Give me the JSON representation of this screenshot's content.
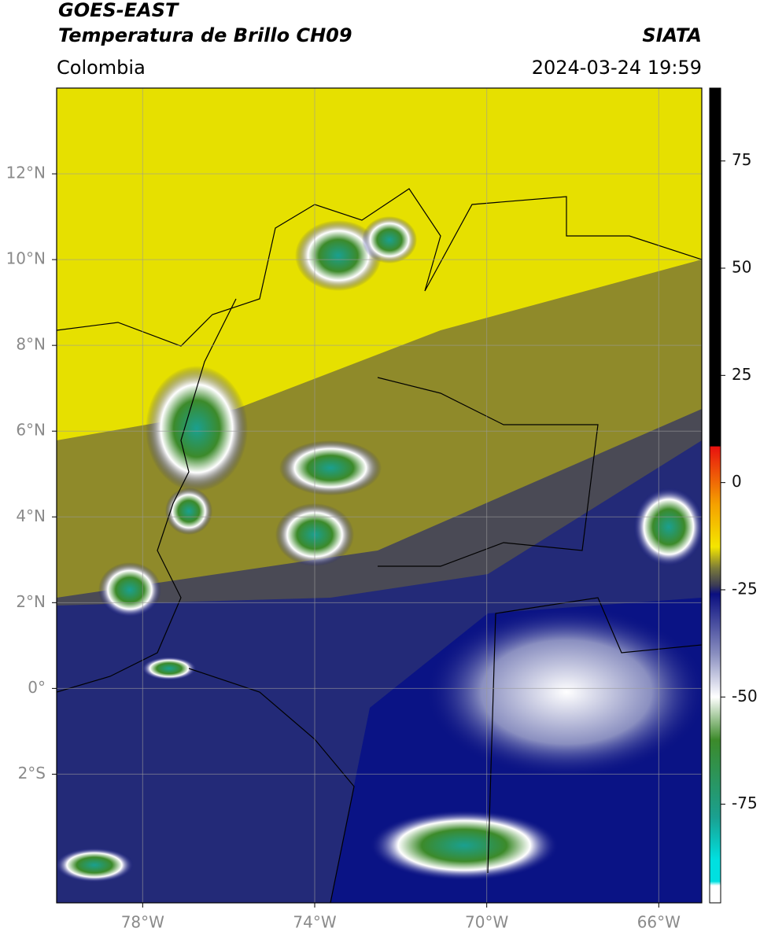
{
  "header": {
    "title": "GOES-EAST",
    "subtitle": "Temperatura de Brillo CH09",
    "agency": "SIATA",
    "region": "Colombia",
    "timestamp": "2024-03-24 19:59"
  },
  "map": {
    "xlim": [
      -80,
      -65
    ],
    "ylim": [
      -5,
      14
    ],
    "grid": true,
    "xticks": [
      {
        "value": -78,
        "label": "78°W"
      },
      {
        "value": -74,
        "label": "74°W"
      },
      {
        "value": -70,
        "label": "70°W"
      },
      {
        "value": -66,
        "label": "66°W"
      }
    ],
    "yticks": [
      {
        "value": 12,
        "label": "12°N"
      },
      {
        "value": 10,
        "label": "10°N"
      },
      {
        "value": 8,
        "label": "8°N"
      },
      {
        "value": 6,
        "label": "6°N"
      },
      {
        "value": 4,
        "label": "4°N"
      },
      {
        "value": 2,
        "label": "2°N"
      },
      {
        "value": 0,
        "label": "0°"
      },
      {
        "value": -2,
        "label": "2°S"
      }
    ]
  },
  "colorbar": {
    "lim": [
      -98,
      92
    ],
    "ticks": [
      75,
      50,
      25,
      0,
      -25,
      -50,
      -75
    ],
    "colorscale": [
      {
        "value": 92,
        "color": "#000000"
      },
      {
        "value": 8.5,
        "color": "#000000"
      },
      {
        "value": 8.4,
        "color": "#e8110f"
      },
      {
        "value": -5,
        "color": "#f5a000"
      },
      {
        "value": -15,
        "color": "#f4e600"
      },
      {
        "value": -20,
        "color": "#7a7a3a"
      },
      {
        "value": -24,
        "color": "#3a3a55"
      },
      {
        "value": -26,
        "color": "#0a0f80"
      },
      {
        "value": -40,
        "color": "#8a8fc0"
      },
      {
        "value": -50,
        "color": "#ffffff"
      },
      {
        "value": -60,
        "color": "#3c8a2a"
      },
      {
        "value": -78,
        "color": "#1aa090"
      },
      {
        "value": -88,
        "color": "#00e0e0"
      },
      {
        "value": -93,
        "color": "#00e0e0"
      },
      {
        "value": -94,
        "color": "#ffffff"
      },
      {
        "value": -98,
        "color": "#ffffff"
      }
    ]
  }
}
